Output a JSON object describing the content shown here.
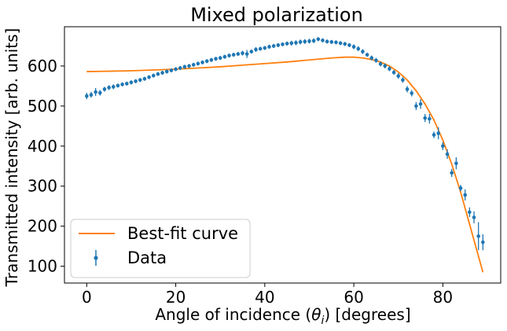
{
  "chart_data": {
    "type": "scatter",
    "title": "Mixed polarization",
    "xlabel": "Angle of incidence (θ_i) [degrees]",
    "xlabel_parts": [
      "Angle of incidence (",
      "θ",
      "i",
      ") [degrees]"
    ],
    "ylabel": "Transmitted intensity [arb. units]",
    "xlim": [
      -5,
      93
    ],
    "ylim": [
      58,
      698
    ],
    "xticks": [
      0,
      20,
      40,
      60,
      80
    ],
    "yticks": [
      100,
      200,
      300,
      400,
      500,
      600
    ],
    "legend_position": "bottom-left",
    "colors": {
      "data": "#1f77b4",
      "fit": "#ff7f0e"
    },
    "series": [
      {
        "name": "Data",
        "kind": "errorbar",
        "points": [
          {
            "x": 0,
            "y": 525,
            "err": 8
          },
          {
            "x": 1,
            "y": 528,
            "err": 7
          },
          {
            "x": 2,
            "y": 535,
            "err": 10
          },
          {
            "x": 3,
            "y": 533,
            "err": 7
          },
          {
            "x": 4,
            "y": 542,
            "err": 6
          },
          {
            "x": 5,
            "y": 546,
            "err": 6
          },
          {
            "x": 6,
            "y": 548,
            "err": 6
          },
          {
            "x": 7,
            "y": 551,
            "err": 5
          },
          {
            "x": 8,
            "y": 554,
            "err": 5
          },
          {
            "x": 9,
            "y": 556,
            "err": 5
          },
          {
            "x": 10,
            "y": 559,
            "err": 5
          },
          {
            "x": 11,
            "y": 562,
            "err": 5
          },
          {
            "x": 12,
            "y": 565,
            "err": 5
          },
          {
            "x": 13,
            "y": 568,
            "err": 5
          },
          {
            "x": 14,
            "y": 572,
            "err": 5
          },
          {
            "x": 15,
            "y": 576,
            "err": 5
          },
          {
            "x": 16,
            "y": 580,
            "err": 5
          },
          {
            "x": 17,
            "y": 583,
            "err": 5
          },
          {
            "x": 18,
            "y": 586,
            "err": 5
          },
          {
            "x": 19,
            "y": 589,
            "err": 5
          },
          {
            "x": 20,
            "y": 592,
            "err": 5
          },
          {
            "x": 21,
            "y": 595,
            "err": 5
          },
          {
            "x": 22,
            "y": 598,
            "err": 5
          },
          {
            "x": 23,
            "y": 600,
            "err": 5
          },
          {
            "x": 24,
            "y": 603,
            "err": 5
          },
          {
            "x": 25,
            "y": 606,
            "err": 5
          },
          {
            "x": 26,
            "y": 609,
            "err": 5
          },
          {
            "x": 27,
            "y": 612,
            "err": 5
          },
          {
            "x": 28,
            "y": 615,
            "err": 5
          },
          {
            "x": 29,
            "y": 618,
            "err": 5
          },
          {
            "x": 30,
            "y": 620,
            "err": 5
          },
          {
            "x": 31,
            "y": 623,
            "err": 5
          },
          {
            "x": 32,
            "y": 626,
            "err": 5
          },
          {
            "x": 33,
            "y": 628,
            "err": 5
          },
          {
            "x": 34,
            "y": 630,
            "err": 5
          },
          {
            "x": 35,
            "y": 632,
            "err": 6
          },
          {
            "x": 36,
            "y": 630,
            "err": 10
          },
          {
            "x": 37,
            "y": 636,
            "err": 5
          },
          {
            "x": 38,
            "y": 641,
            "err": 6
          },
          {
            "x": 39,
            "y": 643,
            "err": 5
          },
          {
            "x": 40,
            "y": 645,
            "err": 5
          },
          {
            "x": 41,
            "y": 648,
            "err": 5
          },
          {
            "x": 42,
            "y": 650,
            "err": 5
          },
          {
            "x": 43,
            "y": 652,
            "err": 5
          },
          {
            "x": 44,
            "y": 654,
            "err": 5
          },
          {
            "x": 45,
            "y": 656,
            "err": 5
          },
          {
            "x": 46,
            "y": 657,
            "err": 6
          },
          {
            "x": 47,
            "y": 658,
            "err": 6
          },
          {
            "x": 48,
            "y": 660,
            "err": 6
          },
          {
            "x": 49,
            "y": 661,
            "err": 6
          },
          {
            "x": 50,
            "y": 662,
            "err": 6
          },
          {
            "x": 51,
            "y": 663,
            "err": 6
          },
          {
            "x": 52,
            "y": 667,
            "err": 5
          },
          {
            "x": 53,
            "y": 664,
            "err": 5
          },
          {
            "x": 54,
            "y": 661,
            "err": 5
          },
          {
            "x": 55,
            "y": 660,
            "err": 5
          },
          {
            "x": 56,
            "y": 659,
            "err": 5
          },
          {
            "x": 57,
            "y": 657,
            "err": 5
          },
          {
            "x": 58,
            "y": 655,
            "err": 5
          },
          {
            "x": 59,
            "y": 652,
            "err": 5
          },
          {
            "x": 60,
            "y": 648,
            "err": 6
          },
          {
            "x": 61,
            "y": 643,
            "err": 6
          },
          {
            "x": 62,
            "y": 636,
            "err": 6
          },
          {
            "x": 63,
            "y": 628,
            "err": 5
          },
          {
            "x": 64,
            "y": 620,
            "err": 6
          },
          {
            "x": 65,
            "y": 614,
            "err": 6
          },
          {
            "x": 66,
            "y": 605,
            "err": 6
          },
          {
            "x": 67,
            "y": 600,
            "err": 6
          },
          {
            "x": 68,
            "y": 593,
            "err": 6
          },
          {
            "x": 69,
            "y": 584,
            "err": 6
          },
          {
            "x": 70,
            "y": 575,
            "err": 7
          },
          {
            "x": 71,
            "y": 565,
            "err": 7
          },
          {
            "x": 72,
            "y": 542,
            "err": 8
          },
          {
            "x": 73,
            "y": 532,
            "err": 8
          },
          {
            "x": 74,
            "y": 500,
            "err": 10
          },
          {
            "x": 75,
            "y": 505,
            "err": 12
          },
          {
            "x": 76,
            "y": 470,
            "err": 10
          },
          {
            "x": 77,
            "y": 468,
            "err": 12
          },
          {
            "x": 78,
            "y": 428,
            "err": 8
          },
          {
            "x": 79,
            "y": 432,
            "err": 15
          },
          {
            "x": 80,
            "y": 400,
            "err": 10
          },
          {
            "x": 81,
            "y": 380,
            "err": 12
          },
          {
            "x": 82,
            "y": 333,
            "err": 10
          },
          {
            "x": 83,
            "y": 357,
            "err": 15
          },
          {
            "x": 84,
            "y": 295,
            "err": 8
          },
          {
            "x": 85,
            "y": 278,
            "err": 14
          },
          {
            "x": 86,
            "y": 235,
            "err": 12
          },
          {
            "x": 87,
            "y": 222,
            "err": 15
          },
          {
            "x": 88,
            "y": 175,
            "err": 35
          },
          {
            "x": 89,
            "y": 160,
            "err": 20
          }
        ]
      },
      {
        "name": "Best-fit curve",
        "kind": "line",
        "x": [
          0,
          5,
          10,
          15,
          20,
          25,
          30,
          35,
          40,
          45,
          50,
          55,
          58,
          60,
          62,
          64,
          66,
          68,
          70,
          72,
          74,
          76,
          78,
          80,
          82,
          84,
          86,
          87,
          88,
          89
        ],
        "y": [
          586,
          587,
          588,
          590,
          592,
          595,
          598,
          602,
          606,
          610,
          615,
          620,
          622,
          622,
          620,
          616,
          610,
          600,
          585,
          565,
          538,
          505,
          465,
          415,
          355,
          285,
          205,
          165,
          125,
          85
        ]
      }
    ]
  }
}
